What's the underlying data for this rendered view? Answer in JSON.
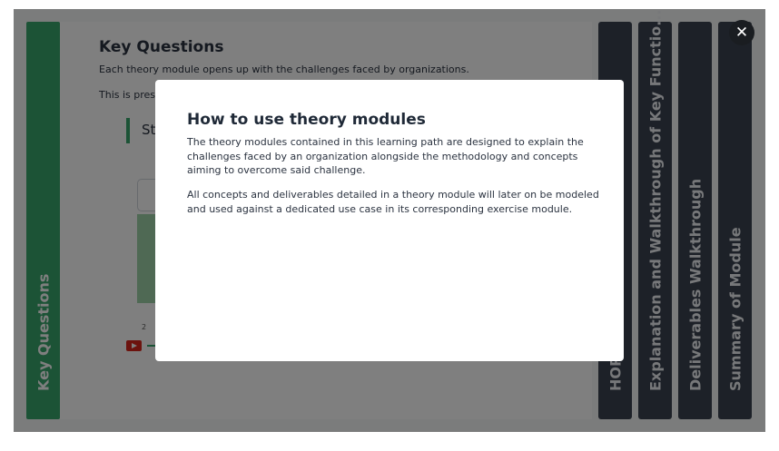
{
  "left_tab": {
    "label": "Key Questions"
  },
  "content": {
    "title": "Key Questions",
    "paragraph1": "Each theory module opens up with the challenges faced by organizations.",
    "paragraph2": "This is prese",
    "highlight_text": "St",
    "small_number": "2"
  },
  "right_tabs": [
    {
      "label": "HOPEX"
    },
    {
      "label": "Explanation and Walkthrough of Key Functio..."
    },
    {
      "label": "Deliverables Walkthrough"
    },
    {
      "label": "Summary of Module"
    }
  ],
  "modal": {
    "title": "How to use theory modules",
    "paragraph1": "The theory modules contained in this learning path are designed to explain the challenges faced by an organization alongside the methodology and concepts aiming to overcome said challenge.",
    "paragraph2": "All concepts and deliverables detailed in a theory module will later on be modeled and used against a dedicated use case in its corresponding exercise module."
  },
  "close_button": {
    "label": "✕",
    "icon": "close-icon"
  },
  "colors": {
    "accent_green": "#38a66c",
    "dark_tab": "#3a4350",
    "overlay": "rgba(0,0,0,0.5)"
  }
}
